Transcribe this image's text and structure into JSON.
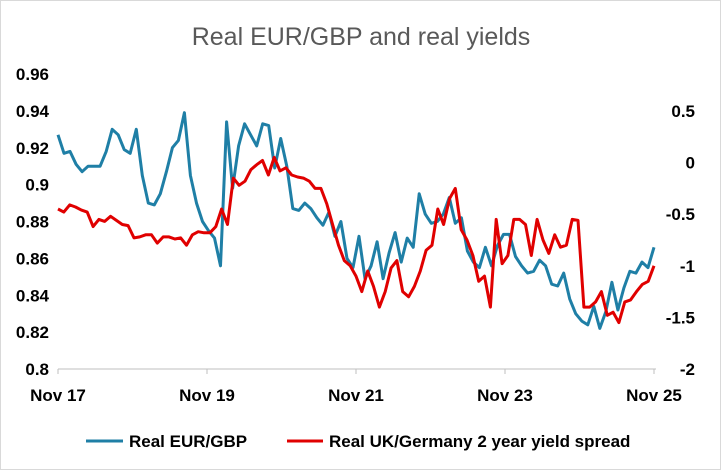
{
  "chart_data": {
    "type": "line",
    "title": "Real EUR/GBP and real yields",
    "xlabel": "",
    "ylabel_left": "",
    "ylabel_right": "",
    "x_start": "2017-11",
    "x_end": "2025-11",
    "x_ticks": [
      "Nov 17",
      "Nov 19",
      "Nov 21",
      "Nov 23",
      "Nov 25"
    ],
    "y_left_ticks": [
      "0.96",
      "0.94",
      "0.92",
      "0.9",
      "0.88",
      "0.86",
      "0.84",
      "0.82",
      "0.8"
    ],
    "y_left_range": [
      0.8,
      0.96
    ],
    "y_right_ticks": [
      "0.5",
      "0",
      "-0.5",
      "-1",
      "-1.5",
      "-2"
    ],
    "y_right_range": [
      -2,
      0.6
    ],
    "grid": false,
    "legend_position": "bottom",
    "series": [
      {
        "name": "Real EUR/GBP",
        "axis": "left",
        "color": "#1f7fa6",
        "values": [
          0.927,
          0.917,
          0.918,
          0.911,
          0.907,
          0.91,
          0.91,
          0.91,
          0.918,
          0.93,
          0.927,
          0.919,
          0.917,
          0.93,
          0.905,
          0.89,
          0.889,
          0.895,
          0.907,
          0.92,
          0.924,
          0.939,
          0.905,
          0.89,
          0.88,
          0.875,
          0.871,
          0.856,
          0.934,
          0.898,
          0.921,
          0.933,
          0.927,
          0.921,
          0.933,
          0.932,
          0.909,
          0.925,
          0.91,
          0.887,
          0.886,
          0.89,
          0.887,
          0.882,
          0.878,
          0.885,
          0.872,
          0.88,
          0.86,
          0.855,
          0.872,
          0.849,
          0.856,
          0.869,
          0.849,
          0.863,
          0.874,
          0.858,
          0.871,
          0.866,
          0.895,
          0.884,
          0.879,
          0.88,
          0.884,
          0.893,
          0.879,
          0.882,
          0.864,
          0.858,
          0.855,
          0.866,
          0.856,
          0.867,
          0.873,
          0.873,
          0.861,
          0.856,
          0.852,
          0.853,
          0.859,
          0.856,
          0.846,
          0.845,
          0.852,
          0.838,
          0.83,
          0.826,
          0.824,
          0.834,
          0.822,
          0.831,
          0.847,
          0.832,
          0.844,
          0.853,
          0.852,
          0.858,
          0.855,
          0.866
        ]
      },
      {
        "name": "Real UK/Germany 2 year yield spread",
        "axis": "right",
        "color": "#e00000",
        "values": [
          -0.45,
          -0.48,
          -0.41,
          -0.43,
          -0.46,
          -0.48,
          -0.62,
          -0.55,
          -0.57,
          -0.52,
          -0.56,
          -0.6,
          -0.61,
          -0.73,
          -0.72,
          -0.7,
          -0.7,
          -0.78,
          -0.72,
          -0.72,
          -0.74,
          -0.73,
          -0.8,
          -0.7,
          -0.67,
          -0.68,
          -0.68,
          -0.62,
          -0.45,
          -0.6,
          -0.15,
          -0.22,
          -0.18,
          -0.07,
          -0.02,
          0.02,
          -0.12,
          0.05,
          -0.08,
          -0.05,
          -0.12,
          -0.14,
          -0.15,
          -0.18,
          -0.25,
          -0.25,
          -0.4,
          -0.6,
          -0.8,
          -0.95,
          -1.0,
          -1.1,
          -1.25,
          -1.05,
          -1.2,
          -1.4,
          -1.25,
          -1.02,
          -0.95,
          -1.25,
          -1.3,
          -1.2,
          -1.05,
          -0.85,
          -0.8,
          -0.45,
          -0.6,
          -0.35,
          -0.25,
          -0.65,
          -0.75,
          -0.9,
          -1.15,
          -1.1,
          -1.4,
          -0.55,
          -0.98,
          -0.9,
          -0.55,
          -0.55,
          -0.6,
          -0.9,
          -0.55,
          -0.75,
          -0.88,
          -0.7,
          -0.82,
          -0.8,
          -0.55,
          -0.56,
          -1.4,
          -1.4,
          -1.35,
          -1.25,
          -1.48,
          -1.45,
          -1.55,
          -1.35,
          -1.33,
          -1.25,
          -1.18,
          -1.15,
          -1.0
        ]
      }
    ]
  }
}
